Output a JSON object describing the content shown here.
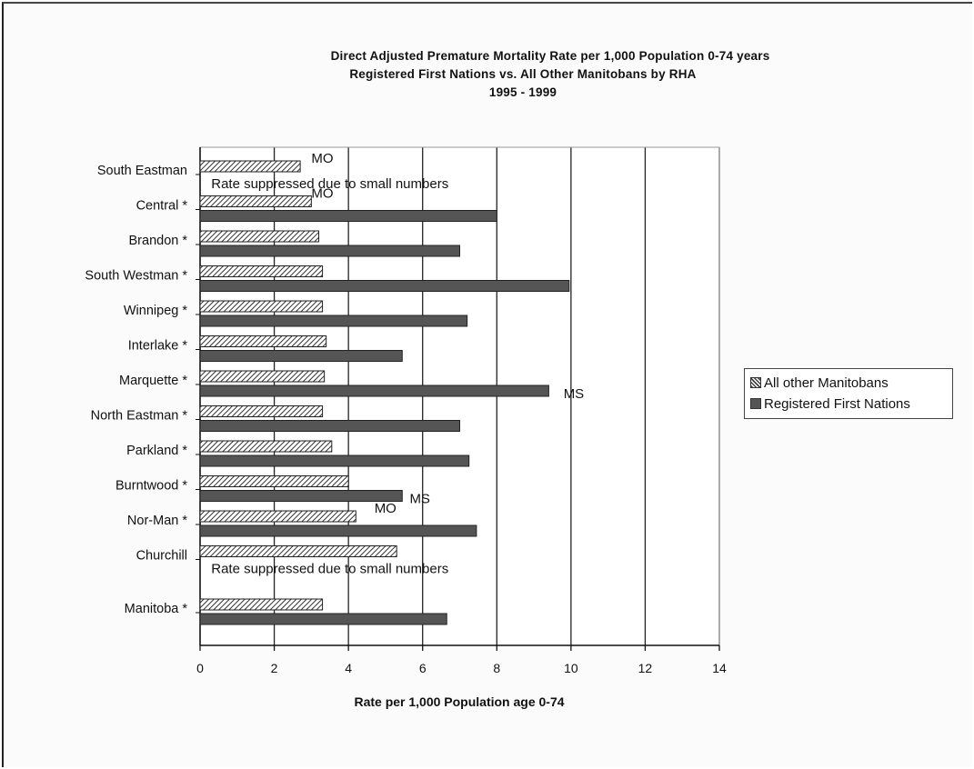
{
  "chart_data": {
    "type": "bar",
    "orientation": "horizontal",
    "title": [
      "Direct Adjusted Premature Mortality Rate per 1,000 Population 0-74 years",
      "Registered First Nations vs. All Other Manitobans by RHA",
      "1995 - 1999"
    ],
    "xlabel": "Rate per 1,000 Population age 0-74",
    "ylabel": "",
    "xlim": [
      0,
      14
    ],
    "xticks": [
      0,
      2,
      4,
      6,
      8,
      10,
      12,
      14
    ],
    "grid": "vertical",
    "legend_position": "right",
    "categories": [
      "South Eastman",
      "Central *",
      "Brandon *",
      "South Westman *",
      "Winnipeg *",
      "Interlake *",
      "Marquette *",
      "North Eastman *",
      "Parkland *",
      "Burntwood *",
      "Nor-Man *",
      "Churchill",
      "Manitoba *"
    ],
    "series": [
      {
        "name": "All other Manitobans",
        "pattern": "hatch",
        "color": "#444444",
        "values": [
          2.7,
          3.0,
          3.2,
          3.3,
          3.3,
          3.4,
          3.35,
          3.3,
          3.55,
          4.0,
          4.2,
          5.3,
          3.3
        ]
      },
      {
        "name": "Registered First Nations",
        "pattern": "solid",
        "color": "#555555",
        "values": [
          null,
          8.0,
          7.0,
          9.95,
          7.2,
          5.45,
          9.4,
          7.0,
          7.25,
          5.45,
          7.45,
          null,
          6.65
        ]
      }
    ],
    "annotations": [
      {
        "text": "MO",
        "category": "South Eastman",
        "x": 3.0,
        "series": "All other Manitobans"
      },
      {
        "text": "Rate suppressed due to small numbers",
        "category": "South Eastman",
        "x": 0.3,
        "series": "Registered First Nations"
      },
      {
        "text": "MO",
        "category": "Central *",
        "x": 3.0,
        "series": "All other Manitobans"
      },
      {
        "text": "MS",
        "category": "Marquette *",
        "x": 9.8,
        "series": "Registered First Nations"
      },
      {
        "text": "MS",
        "category": "Burntwood *",
        "x": 5.65,
        "series": "Registered First Nations"
      },
      {
        "text": "MO",
        "category": "Nor-Man *",
        "x": 4.7,
        "series": "All other Manitobans"
      },
      {
        "text": "Rate suppressed due to small numbers",
        "category": "Churchill",
        "x": 0.3,
        "series": "Registered First Nations"
      }
    ]
  }
}
